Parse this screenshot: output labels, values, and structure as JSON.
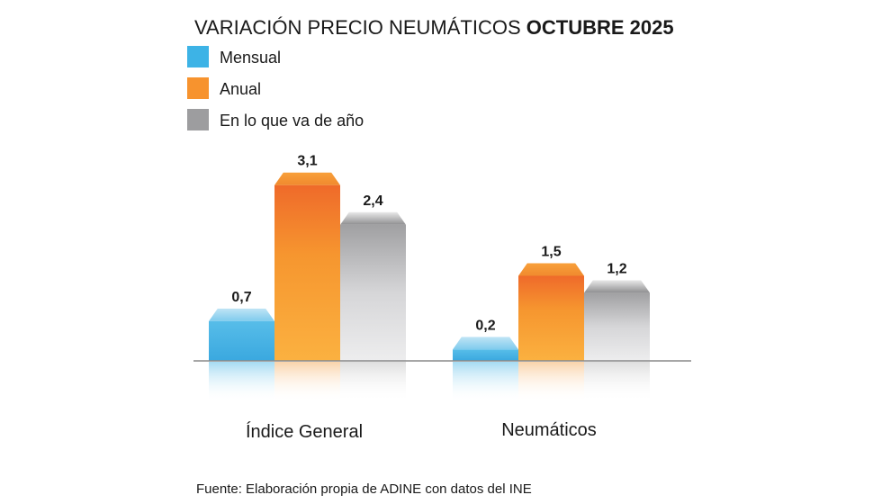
{
  "chart_data": {
    "type": "bar",
    "title": "VARIACIÓN PRECIO NEUMÁTICOS",
    "title_bold": "OCTUBRE 2025",
    "categories": [
      "Índice General",
      "Neumáticos"
    ],
    "series": [
      {
        "name": "Mensual",
        "values": [
          0.7,
          0.2
        ],
        "labels": [
          "0,7",
          "0,2"
        ],
        "color": "#3db3e6"
      },
      {
        "name": "Anual",
        "values": [
          3.1,
          1.5
        ],
        "labels": [
          "3,1",
          "1,5"
        ],
        "color": "#f7932e"
      },
      {
        "name": "En lo que va de año",
        "values": [
          2.4,
          1.2
        ],
        "labels": [
          "2,4",
          "1,2"
        ],
        "color": "#9d9d9f"
      }
    ],
    "legend_position": "top-left",
    "grid": false,
    "source": "Fuente: Elaboración propia de ADINE con datos del INE"
  }
}
